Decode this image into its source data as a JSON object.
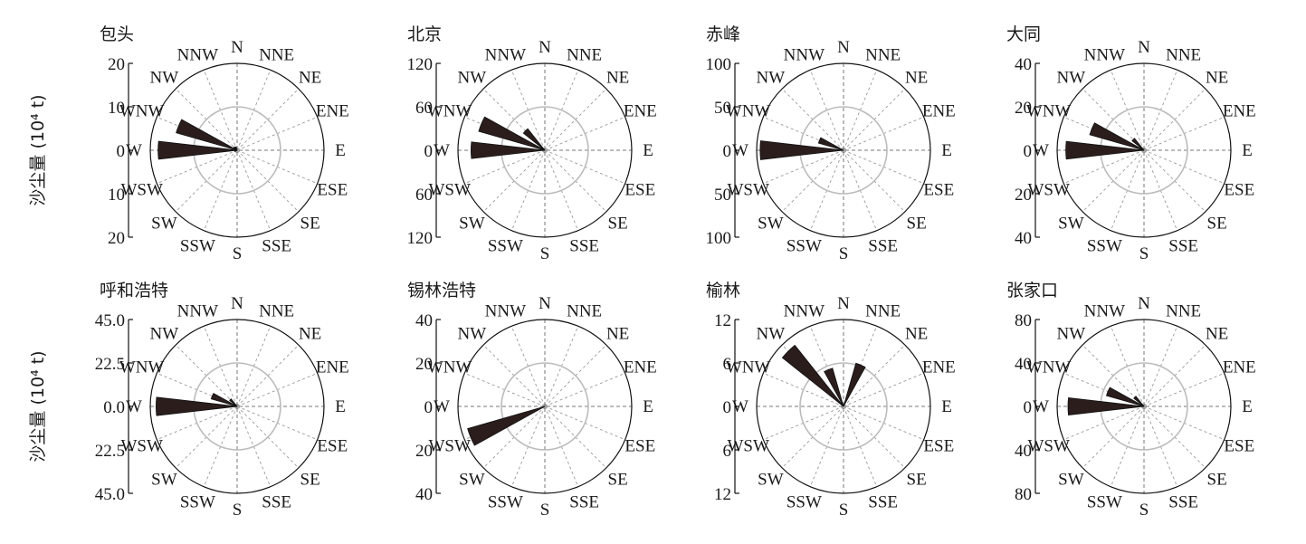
{
  "figure": {
    "ylabel": "沙尘量 (10⁴ t)"
  },
  "chart_data": [
    {
      "type": "polar-bar",
      "title": "包头",
      "directions": [
        "N",
        "NNE",
        "NE",
        "ENE",
        "E",
        "ESE",
        "SE",
        "SSE",
        "S",
        "SSW",
        "SW",
        "WSW",
        "W",
        "WNW",
        "NW",
        "NNW"
      ],
      "values": [
        0,
        0,
        0,
        0,
        0,
        0,
        0,
        0,
        0,
        0,
        0,
        0.6,
        18.2,
        14.6,
        1.0,
        0.8
      ],
      "rmax": 20,
      "y_ticks": [
        "20",
        "10",
        "0",
        "10",
        "20"
      ]
    },
    {
      "type": "polar-bar",
      "title": "北京",
      "directions": [
        "N",
        "NNE",
        "NE",
        "ENE",
        "E",
        "ESE",
        "SE",
        "SSE",
        "S",
        "SSW",
        "SW",
        "WSW",
        "W",
        "WNW",
        "NW",
        "NNW"
      ],
      "values": [
        0,
        0,
        0,
        0,
        0,
        0,
        0,
        0,
        0,
        0,
        0,
        0,
        102,
        95,
        38,
        0
      ],
      "rmax": 120,
      "y_ticks": [
        "120",
        "60",
        "0",
        "60",
        "120"
      ]
    },
    {
      "type": "polar-bar",
      "title": "赤峰",
      "directions": [
        "N",
        "NNE",
        "NE",
        "ENE",
        "E",
        "ESE",
        "SE",
        "SSE",
        "S",
        "SSW",
        "SW",
        "WSW",
        "W",
        "WNW",
        "NW",
        "NNW"
      ],
      "values": [
        0,
        0,
        0,
        0,
        0,
        0,
        0,
        0,
        0,
        0,
        0,
        0,
        96,
        30,
        0,
        0
      ],
      "rmax": 100,
      "y_ticks": [
        "100",
        "50",
        "0",
        "50",
        "100"
      ]
    },
    {
      "type": "polar-bar",
      "title": "大同",
      "directions": [
        "N",
        "NNE",
        "NE",
        "ENE",
        "E",
        "ESE",
        "SE",
        "SSE",
        "S",
        "SSW",
        "SW",
        "WSW",
        "W",
        "WNW",
        "NW",
        "NNW"
      ],
      "values": [
        0,
        0,
        0,
        0,
        0,
        0,
        0,
        0,
        0,
        0,
        0,
        0,
        36,
        26,
        7,
        0
      ],
      "rmax": 40,
      "y_ticks": [
        "40",
        "20",
        "0",
        "20",
        "40"
      ]
    },
    {
      "type": "polar-bar",
      "title": "呼和浩特",
      "directions": [
        "N",
        "NNE",
        "NE",
        "ENE",
        "E",
        "ESE",
        "SE",
        "SSE",
        "S",
        "SSW",
        "SW",
        "WSW",
        "W",
        "WNW",
        "NW",
        "NNW"
      ],
      "values": [
        0,
        0,
        0,
        0,
        0,
        0,
        0,
        0,
        0,
        0,
        0,
        0,
        42,
        14,
        5,
        0
      ],
      "rmax": 45,
      "y_ticks": [
        "45.0",
        "22.5",
        "0.0",
        "22.5",
        "45.0"
      ]
    },
    {
      "type": "polar-bar",
      "title": "锡林浩特",
      "directions": [
        "N",
        "NNE",
        "NE",
        "ENE",
        "E",
        "ESE",
        "SE",
        "SSE",
        "S",
        "SSW",
        "SW",
        "WSW",
        "W",
        "WNW",
        "NW",
        "NNW"
      ],
      "values": [
        0,
        0,
        0,
        0,
        0,
        0,
        0,
        0,
        0,
        0,
        0,
        37,
        0,
        0,
        0,
        0
      ],
      "rmax": 40,
      "y_ticks": [
        "40",
        "20",
        "0",
        "20",
        "40"
      ]
    },
    {
      "type": "polar-bar",
      "title": "榆林",
      "directions": [
        "N",
        "NNE",
        "NE",
        "ENE",
        "E",
        "ESE",
        "SE",
        "SSE",
        "S",
        "SSW",
        "SW",
        "WSW",
        "W",
        "WNW",
        "NW",
        "NNW"
      ],
      "values": [
        0,
        6.2,
        0,
        0,
        0,
        0,
        0,
        0,
        0,
        0,
        0,
        0,
        0,
        0,
        10.8,
        5.5
      ],
      "rmax": 12,
      "y_ticks": [
        "12",
        "6",
        "0",
        "6",
        "12"
      ]
    },
    {
      "type": "polar-bar",
      "title": "张家口",
      "directions": [
        "N",
        "NNE",
        "NE",
        "ENE",
        "E",
        "ESE",
        "SE",
        "SSE",
        "S",
        "SSW",
        "SW",
        "WSW",
        "W",
        "WNW",
        "NW",
        "NNW"
      ],
      "values": [
        0,
        0,
        0,
        0,
        0,
        0,
        0,
        0,
        0,
        0,
        0,
        0,
        70,
        36,
        12,
        0
      ],
      "rmax": 80,
      "y_ticks": [
        "80",
        "40",
        "0",
        "40",
        "80"
      ]
    }
  ]
}
